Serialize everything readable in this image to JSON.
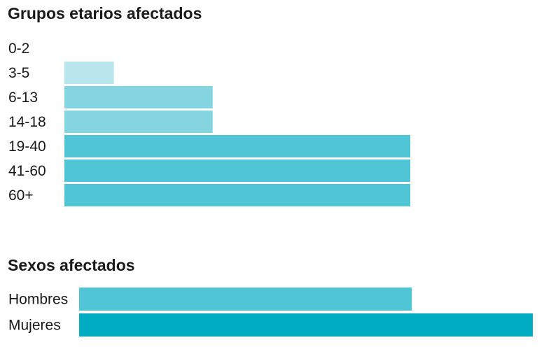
{
  "chart_data": [
    {
      "type": "bar",
      "orientation": "horizontal",
      "title": "Grupos etarios afectados",
      "categories": [
        "0-2",
        "3-5",
        "6-13",
        "14-18",
        "19-40",
        "41-60",
        "60+"
      ],
      "values": [
        0,
        1,
        3,
        3,
        7,
        7,
        7
      ],
      "xlim": [
        0,
        7
      ],
      "colors": [
        "#b8e6ec",
        "#b8e6ec",
        "#85d5e0",
        "#85d5e0",
        "#4fc5d5",
        "#4fc5d5",
        "#4fc5d5"
      ],
      "grid": false
    },
    {
      "type": "bar",
      "orientation": "horizontal",
      "title": "Sexos afectados",
      "categories": [
        "Hombres",
        "Mujeres"
      ],
      "values": [
        11,
        15
      ],
      "xlim": [
        0,
        15
      ],
      "colors": [
        "#4fc5d5",
        "#00acc1"
      ],
      "grid": false
    }
  ]
}
